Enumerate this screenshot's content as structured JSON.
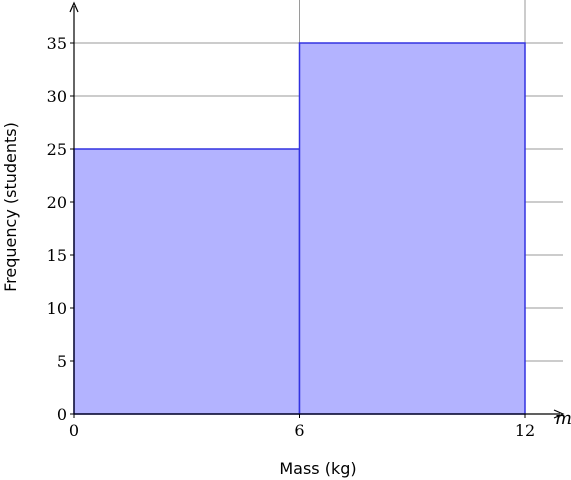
{
  "chart_data": {
    "type": "bar",
    "subtype": "histogram",
    "bins": [
      {
        "x0": 0,
        "x1": 6,
        "value": 25
      },
      {
        "x0": 6,
        "x1": 12,
        "value": 35
      }
    ],
    "xlabel": "Mass (kg)",
    "ylabel": "Frequency (students)",
    "x_axis_variable": "m",
    "xticks": [
      0,
      6,
      12
    ],
    "yticks": [
      0,
      5,
      10,
      15,
      20,
      25,
      30,
      35
    ],
    "xlim": [
      0,
      12
    ],
    "ylim": [
      0,
      35
    ],
    "grid": "major gridlines",
    "bar_fill": "#b3b3ff",
    "bar_stroke": "#3333e0"
  }
}
